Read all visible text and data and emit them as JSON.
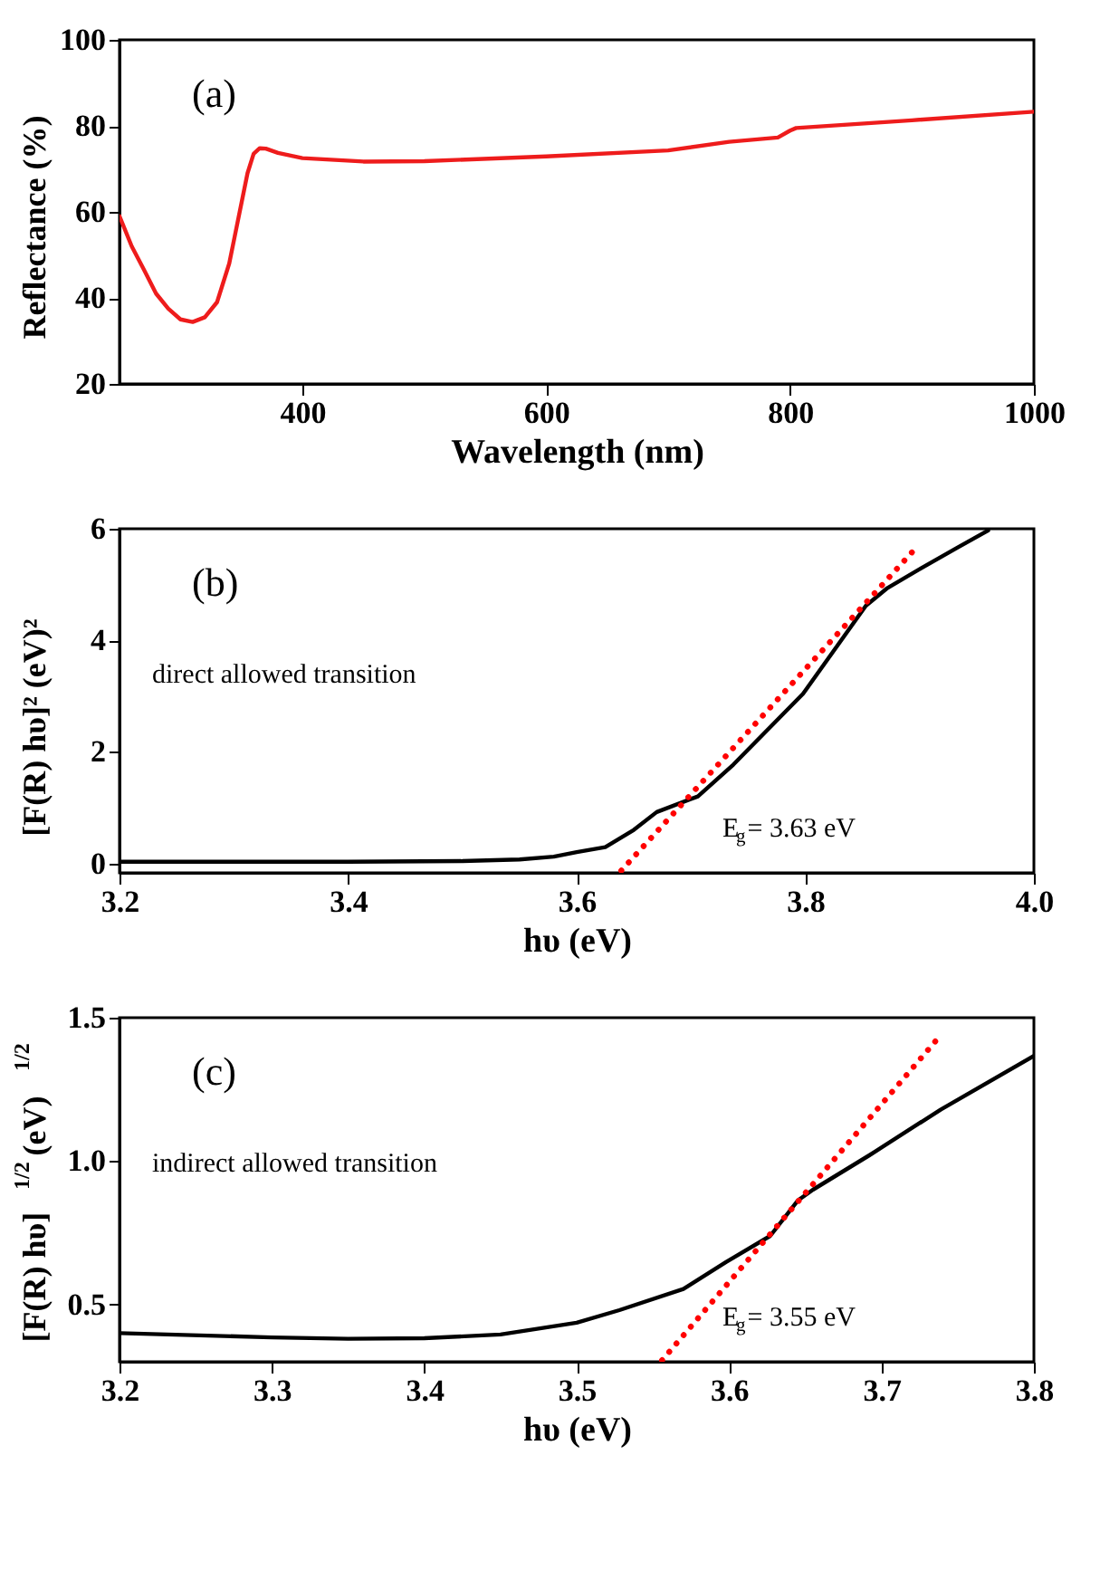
{
  "chart_data": [
    {
      "type": "line",
      "xlabel": "Wavelength (nm)",
      "ylabel": "Reflectance (%)",
      "annotations": [
        "(a)"
      ],
      "xlim": [
        250,
        1000
      ],
      "xticks": [
        400,
        600,
        800,
        1000
      ],
      "ylim": [
        20,
        100
      ],
      "yticks": [
        20,
        40,
        60,
        80,
        100
      ],
      "grid": false,
      "marker": "none",
      "series": [
        {
          "color": "#ee1c1c",
          "line_style": "solid",
          "x": [
            250,
            260,
            270,
            280,
            290,
            300,
            310,
            320,
            330,
            340,
            350,
            355,
            360,
            365,
            370,
            380,
            400,
            450,
            500,
            600,
            700,
            750,
            790,
            800,
            805,
            900,
            1000
          ],
          "values": [
            59,
            52,
            46.6,
            41,
            37.5,
            35,
            34.4,
            35.5,
            39,
            48,
            62,
            69,
            73.5,
            74.8,
            74.7,
            73.7,
            72.5,
            71.7,
            71.8,
            72.9,
            74.3,
            76.3,
            77.3,
            78.9,
            79.5,
            81.3,
            83.3
          ]
        }
      ]
    },
    {
      "type": "line",
      "xlabel": "hυ (eV)",
      "ylabel": "[F(R) hυ]² (eV)²",
      "annotations": [
        "(b)",
        "direct allowed transition",
        "E$_{g}$= 3.63 eV"
      ],
      "xlim": [
        3.2,
        4.0
      ],
      "xticks": [
        3.2,
        3.4,
        3.6,
        3.8,
        {
          "value": 4.0,
          "label": "4.0"
        }
      ],
      "ylim": [
        -0.17,
        6
      ],
      "yticks": [
        0,
        2,
        4,
        6
      ],
      "grid": false,
      "marker": "none",
      "series": [
        {
          "color": "#000000",
          "line_style": "solid",
          "x": [
            3.2,
            3.3,
            3.4,
            3.5,
            3.55,
            3.58,
            3.6,
            3.625,
            3.65,
            3.67,
            3.706,
            3.737,
            3.798,
            3.853,
            3.872,
            3.902,
            3.933,
            3.96
          ],
          "values": [
            0.03,
            0.03,
            0.03,
            0.04,
            0.07,
            0.12,
            0.2,
            0.29,
            0.6,
            0.92,
            1.2,
            1.77,
            3.04,
            4.62,
            4.94,
            5.3,
            5.66,
            5.97
          ]
        },
        {
          "type": "line",
          "color": "#ff0000",
          "line_style": "dotted",
          "x": [
            3.639,
            3.897
          ],
          "values": [
            -0.13,
            5.66
          ]
        }
      ]
    },
    {
      "type": "line",
      "xlabel": "hυ (eV)",
      "ylabel": "[F(R) hυ]$^{1/2}$ (eV)$^{1/2}$",
      "annotations": [
        "(c)",
        "indirect allowed transition",
        "E$_{g}$= 3.55 eV"
      ],
      "xlim": [
        3.2,
        3.8
      ],
      "xticks": [
        3.2,
        3.3,
        3.4,
        3.5,
        3.6,
        3.7,
        3.8
      ],
      "ylim": [
        0.3,
        1.5
      ],
      "yticks": [
        0.5,
        {
          "value": 1.0,
          "label": "1.0"
        },
        1.5
      ],
      "grid": false,
      "marker": "none",
      "series": [
        {
          "color": "#000000",
          "line_style": "solid",
          "x": [
            3.2,
            3.3,
            3.35,
            3.4,
            3.45,
            3.5,
            3.528,
            3.57,
            3.598,
            3.627,
            3.645,
            3.655,
            3.692,
            3.739,
            3.8
          ],
          "values": [
            0.4,
            0.385,
            0.38,
            0.382,
            0.395,
            0.436,
            0.48,
            0.554,
            0.648,
            0.739,
            0.862,
            0.9,
            1.02,
            1.18,
            1.367
          ]
        },
        {
          "type": "line",
          "color": "#ff0000",
          "line_style": "dotted",
          "x": [
            3.556,
            3.739
          ],
          "values": [
            0.305,
            1.44
          ]
        }
      ]
    }
  ]
}
